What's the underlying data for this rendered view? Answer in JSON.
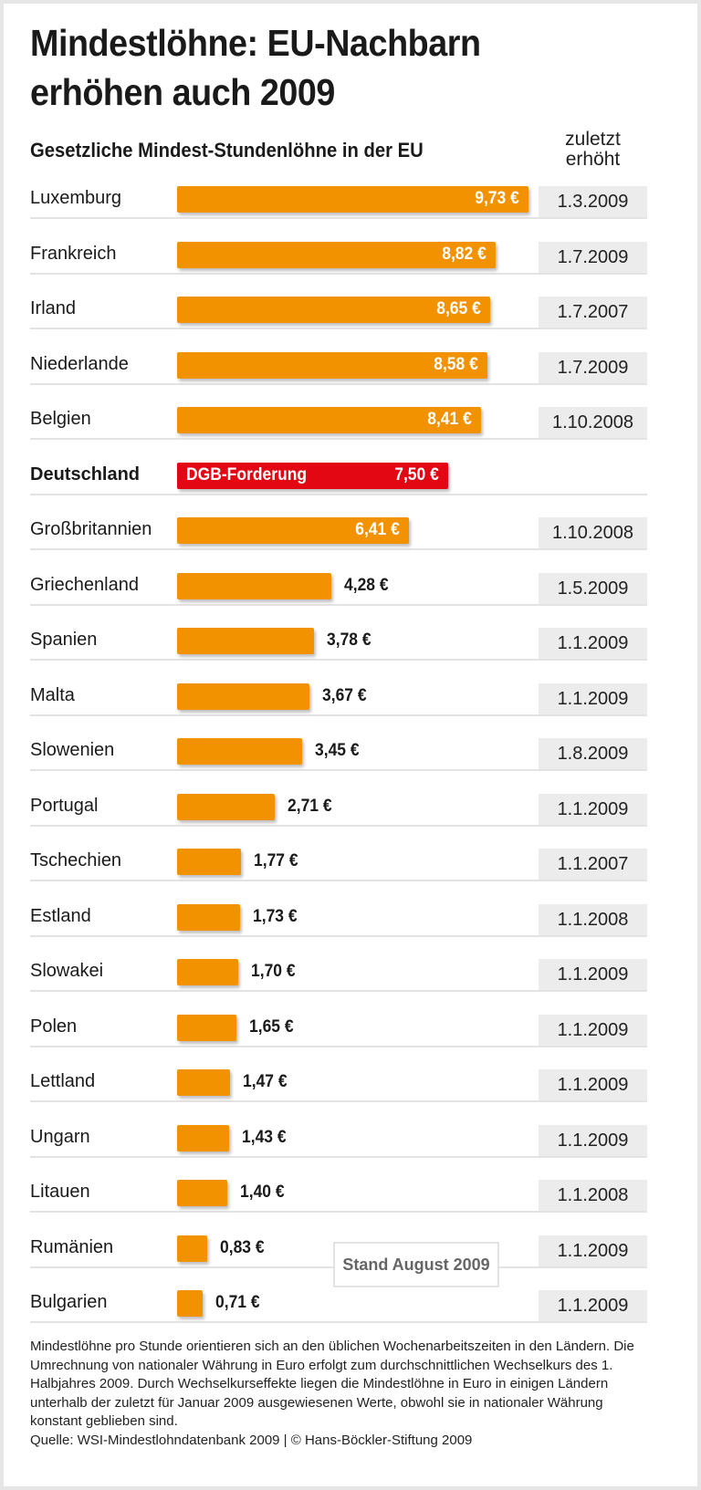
{
  "chart_data": {
    "type": "bar",
    "orientation": "horizontal",
    "title": "Mindestlöhne: EU-Nachbarn erhöhen auch 2009",
    "title_lines": [
      "Mindestlöhne: EU-Nachbarn",
      "erhöhen auch 2009"
    ],
    "subtitle": "Gesetzliche Mindest-Stundenlöhne in der EU",
    "date_column_header": [
      "zuletzt",
      "erhöht"
    ],
    "unit": "€",
    "bar_color": "#f39200",
    "highlight_color": "#e30613",
    "rows": [
      {
        "country": "Luxemburg",
        "value": 9.73,
        "label": "9,73 €",
        "date": "1.3.2009"
      },
      {
        "country": "Frankreich",
        "value": 8.82,
        "label": "8,82 €",
        "date": "1.7.2009"
      },
      {
        "country": "Irland",
        "value": 8.65,
        "label": "8,65 €",
        "date": "1.7.2007"
      },
      {
        "country": "Niederlande",
        "value": 8.58,
        "label": "8,58 €",
        "date": "1.7.2009"
      },
      {
        "country": "Belgien",
        "value": 8.41,
        "label": "8,41 €",
        "date": "1.10.2008"
      },
      {
        "country": "Deutschland",
        "value": 7.5,
        "label": "7,50 €",
        "date": "",
        "highlight": true,
        "bar_text": "DGB-Forderung"
      },
      {
        "country": "Großbritannien",
        "value": 6.41,
        "label": "6,41 €",
        "date": "1.10.2008"
      },
      {
        "country": "Griechenland",
        "value": 4.28,
        "label": "4,28 €",
        "date": "1.5.2009"
      },
      {
        "country": "Spanien",
        "value": 3.78,
        "label": "3,78 €",
        "date": "1.1.2009"
      },
      {
        "country": "Malta",
        "value": 3.67,
        "label": "3,67 €",
        "date": "1.1.2009"
      },
      {
        "country": "Slowenien",
        "value": 3.45,
        "label": "3,45 €",
        "date": "1.8.2009"
      },
      {
        "country": "Portugal",
        "value": 2.71,
        "label": "2,71 €",
        "date": "1.1.2009"
      },
      {
        "country": "Tschechien",
        "value": 1.77,
        "label": "1,77 €",
        "date": "1.1.2007"
      },
      {
        "country": "Estland",
        "value": 1.73,
        "label": "1,73 €",
        "date": "1.1.2008"
      },
      {
        "country": "Slowakei",
        "value": 1.7,
        "label": "1,70 €",
        "date": "1.1.2009"
      },
      {
        "country": "Polen",
        "value": 1.65,
        "label": "1,65 €",
        "date": "1.1.2009"
      },
      {
        "country": "Lettland",
        "value": 1.47,
        "label": "1,47 €",
        "date": "1.1.2009"
      },
      {
        "country": "Ungarn",
        "value": 1.43,
        "label": "1,43 €",
        "date": "1.1.2009"
      },
      {
        "country": "Litauen",
        "value": 1.4,
        "label": "1,40 €",
        "date": "1.1.2008"
      },
      {
        "country": "Rumänien",
        "value": 0.83,
        "label": "0,83 €",
        "date": "1.1.2009"
      },
      {
        "country": "Bulgarien",
        "value": 0.71,
        "label": "0,71 €",
        "date": "1.1.2009"
      }
    ],
    "annotation": "Stand August 2009",
    "footnote": "Mindestlöhne pro Stunde orientieren sich an den üblichen Wochenarbeitszeiten in den Ländern. Die Umrechnung von nationaler Währung in Euro erfolgt zum durchschnittlichen Wechselkurs des 1. Halbjahres 2009. Durch Wechselkurseffekte liegen die Mindestlöhne in Euro in einigen Ländern unterhalb der zuletzt für Januar 2009 ausgewiesenen Werte, obwohl sie in nationaler Währung konstant geblieben sind.",
    "source": "Quelle: WSI-Mindestlohndatenbank 2009 | © Hans-Böckler-Stiftung 2009"
  }
}
